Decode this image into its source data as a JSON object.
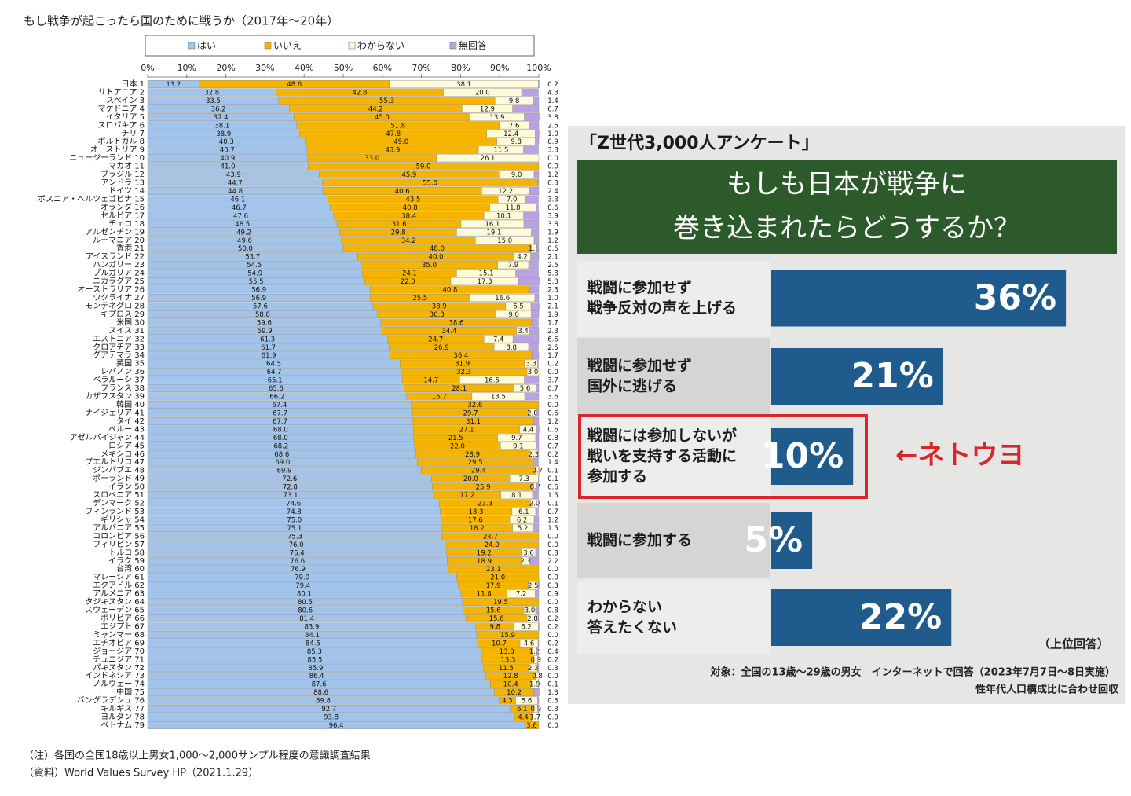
{
  "chart_data": [
    {
      "type": "bar",
      "orientation": "horizontal",
      "stacked": true,
      "title": "もし戦争が起こったら国のために戦うか（2017年〜20年）",
      "categories": [
        "日本 1",
        "リトアニア 2",
        "スペイン 3",
        "マケドニア 4",
        "イタリア 5",
        "スロバキア 6",
        "チリ 7",
        "ポルトガル 8",
        "オーストリア 9",
        "ニュージーランド 10",
        "マカオ 11",
        "ブラジル 12",
        "アンドラ 13",
        "ドイツ 14",
        "ボスニア・ヘルツェゴビナ 15",
        "オランダ 16",
        "セルビア 17",
        "チェコ 18",
        "アルゼンチン 19",
        "ルーマニア 20",
        "香港 21",
        "アイスランド 22",
        "ハンガリー 23",
        "ブルガリア 24",
        "ニカラグア 25",
        "オーストラリア 26",
        "ウクライナ 27",
        "モンテネグロ 28",
        "キプロス 29",
        "米国 30",
        "スイス 31",
        "エストニア 32",
        "クロアチア 33",
        "グアテマラ 34",
        "英国 35",
        "レバノン 36",
        "ベラルーシ 37",
        "フランス 38",
        "カザフスタン 39",
        "韓国 40",
        "ナイジェリア 41",
        "タイ 42",
        "ペルー 43",
        "アゼルバイジャン 44",
        "ロシア 45",
        "メキシコ 46",
        "プエルトリコ 47",
        "ジンバブエ 48",
        "ポーランド 49",
        "イラン 50",
        "スロベニア 51",
        "デンマーク 52",
        "フィンランド 53",
        "ギリシャ 54",
        "アルバニア 55",
        "コロンビア 56",
        "フィリピン 57",
        "トルコ 58",
        "イラク 59",
        "台湾 60",
        "マレーシア 61",
        "エクアドル 62",
        "アルメニア 63",
        "タジキスタン 64",
        "スウェーデン 65",
        "ボリビア 66",
        "エジプト 67",
        "ミャンマー 68",
        "エチオピア 69",
        "ジョージア 70",
        "チュニジア 71",
        "パキスタン 72",
        "インドネシア 73",
        "ノルウェー 74",
        "中国 75",
        "バングラデシュ 76",
        "キルギス 77",
        "ヨルダン 78",
        "ベトナム 79"
      ],
      "series": [
        {
          "name": "はい",
          "color": "#a3c4ea",
          "values": [
            13.2,
            32.8,
            33.5,
            36.2,
            37.4,
            38.1,
            38.9,
            40.3,
            40.7,
            40.9,
            41.0,
            43.9,
            44.7,
            44.8,
            46.1,
            46.7,
            47.6,
            48.5,
            49.2,
            49.6,
            50.0,
            53.7,
            54.5,
            54.9,
            55.5,
            56.9,
            56.9,
            57.6,
            58.8,
            59.6,
            59.9,
            61.3,
            61.7,
            61.9,
            64.5,
            64.7,
            65.1,
            65.6,
            66.2,
            67.4,
            67.7,
            67.7,
            68.0,
            68.0,
            68.2,
            68.6,
            69.0,
            69.9,
            72.6,
            72.8,
            73.1,
            74.6,
            74.8,
            75.0,
            75.1,
            75.3,
            76.0,
            76.4,
            76.6,
            76.9,
            79.0,
            79.4,
            80.1,
            80.5,
            80.6,
            81.4,
            83.9,
            84.1,
            84.5,
            85.3,
            85.5,
            85.9,
            86.4,
            87.6,
            88.6,
            89.8,
            92.7,
            93.8,
            96.4
          ],
          "value_labels": [
            "13.2",
            "32.8",
            "33.5",
            "36.2",
            "37.4",
            "38.1",
            "38.9",
            "40.3",
            "40.7",
            "40.9",
            "41.0",
            "43.9",
            "44.7",
            "44.8",
            "46.1",
            "46.7",
            "47.6",
            "48.5",
            "49.2",
            "49.6",
            "50.0",
            "53.7",
            "54.5",
            "54.9",
            "55.5",
            "56.9",
            "56.9",
            "57.6",
            "58.8",
            "59.6",
            "59.9",
            "61.3",
            "61.7",
            "61.9",
            "64.5",
            "64.7",
            "65.1",
            "65.6",
            "66.2",
            "67.4",
            "67.7",
            "67.7",
            "68.0",
            "68.0",
            "68.2",
            "68.6",
            "69.0",
            "69.9",
            "72.6",
            "72.8",
            "73.1",
            "74.6",
            "74.8",
            "75.0",
            "75.1",
            "75.3",
            "76.0",
            "76.4",
            "76.6",
            "76.9",
            "79.0",
            "79.4",
            "80.1",
            "80.5",
            "80.6",
            "81.4",
            "83.9",
            "84.1",
            "84.5",
            "85.3",
            "85.5",
            "85.9",
            "86.4",
            "87.6",
            "88.6",
            "89.8",
            "92.7",
            "93.8",
            "96.4"
          ]
        },
        {
          "name": "いいえ",
          "color": "#f4b400",
          "values": [
            48.6,
            42.8,
            55.3,
            44.2,
            45.0,
            51.8,
            47.8,
            49.0,
            43.9,
            33.0,
            59.0,
            45.9,
            55.0,
            40.6,
            43.5,
            40.8,
            38.4,
            31.6,
            29.8,
            34.2,
            48.0,
            40.0,
            35.0,
            24.1,
            22.0,
            40.8,
            25.5,
            33.9,
            30.3,
            38.6,
            34.4,
            24.7,
            26.9,
            36.4,
            31.9,
            32.3,
            14.7,
            28.1,
            16.7,
            32.6,
            29.7,
            31.1,
            27.1,
            21.5,
            22.0,
            28.9,
            29.5,
            29.4,
            20.0,
            25.9,
            17.2,
            23.3,
            18.3,
            17.6,
            18.2,
            24.7,
            24.0,
            19.2,
            18.9,
            23.1,
            21.0,
            17.9,
            11.8,
            19.5,
            15.6,
            15.6,
            9.8,
            15.9,
            10.7,
            13.0,
            13.3,
            11.5,
            12.8,
            10.4,
            10.2,
            4.3,
            6.1,
            4.4,
            3.6
          ],
          "value_labels": [
            "48.6",
            "42.8",
            "55.3",
            "44.2",
            "45.0",
            "51.8",
            "47.8",
            "49.0",
            "43.9",
            "33.0",
            "59.0",
            "45.9",
            "55.0",
            "40.6",
            "43.5",
            "40.8",
            "38.4",
            "31.6",
            "29.8",
            "34.2",
            "48.0",
            "40.0",
            "35.0",
            "24.1",
            "22.0",
            "40.8",
            "25.5",
            "33.9",
            "30.3",
            "38.6",
            "34.4",
            "24.7",
            "26.9",
            "36.4",
            "31.9",
            "32.3",
            "14.7",
            "28.1",
            "16.7",
            "32.6",
            "29.7",
            "31.1",
            "27.1",
            "21.5",
            "22.0",
            "28.9",
            "29.5",
            "29.4",
            "20.0",
            "25.9",
            "17.2",
            "23.3",
            "18.3",
            "17.6",
            "18.2",
            "24.7",
            "24.0",
            "19.2",
            "18.9",
            "23.1",
            "21.0",
            "17.9",
            "11.8",
            "19.5",
            "15.6",
            "15.6",
            "9.8",
            "15.9",
            "10.7",
            "13.0",
            "13.3",
            "11.5",
            "12.8",
            "10.4",
            "10.2",
            "4.3",
            "6.1",
            "4.4",
            "3.6"
          ]
        },
        {
          "name": "わからない",
          "color": "#fffbd9",
          "values": [
            38.1,
            20.0,
            9.8,
            12.9,
            13.9,
            7.6,
            12.4,
            9.8,
            11.5,
            26.1,
            0,
            9.0,
            0,
            12.2,
            7.0,
            11.8,
            10.1,
            16.1,
            19.1,
            15.0,
            1.5,
            4.2,
            7.9,
            15.1,
            17.3,
            0,
            16.6,
            6.5,
            9.0,
            0,
            3.4,
            7.4,
            8.8,
            0,
            3.3,
            3.0,
            16.5,
            5.6,
            13.5,
            0,
            2.0,
            0,
            4.4,
            9.7,
            9.1,
            2.3,
            0,
            0.7,
            7.3,
            0.7,
            8.1,
            2.0,
            6.1,
            6.2,
            5.2,
            0,
            0,
            3.6,
            2.3,
            0,
            0,
            2.5,
            7.2,
            0,
            3.0,
            2.8,
            6.2,
            0,
            4.6,
            1.2,
            0.9,
            2.3,
            0.8,
            1.9,
            0,
            5.6,
            0.9,
            1.7,
            0
          ],
          "value_labels": [
            "38.1",
            "20.0",
            "9.8",
            "12.9",
            "13.9",
            "7.6",
            "12.4",
            "9.8",
            "11.5",
            "26.1",
            null,
            "9.0",
            null,
            "12.2",
            "7.0",
            "11.8",
            "10.1",
            "16.1",
            "19.1",
            "15.0",
            "1.5",
            "4.2",
            "7.9",
            "15.1",
            "17.3",
            null,
            "16.6",
            "6.5",
            "9.0",
            null,
            "3.4",
            "7.4",
            "8.8",
            null,
            "3.3",
            "3.0",
            "16.5",
            "5.6",
            "13.5",
            null,
            "2.0",
            null,
            "4.4",
            "9.7",
            "9.1",
            "2.3",
            null,
            "0.7",
            "7.3",
            "0.7",
            "8.1",
            "2.0",
            "6.1",
            "6.2",
            "5.2",
            null,
            null,
            "3.6",
            "2.3",
            null,
            null,
            "2.5",
            "7.2",
            null,
            "3.0",
            "2.8",
            "6.2",
            null,
            "4.6",
            "1.2",
            "0.9",
            "2.3",
            "0.8",
            "1.9",
            null,
            "5.6",
            "0.9",
            "1.7",
            null
          ]
        },
        {
          "name": "無回答",
          "color": "#b9a1e2",
          "values": [
            0.2,
            4.3,
            1.4,
            6.7,
            3.8,
            2.5,
            1.0,
            0.9,
            3.8,
            0.0,
            0.0,
            1.2,
            0.3,
            2.4,
            3.3,
            0.6,
            3.9,
            3.8,
            1.9,
            1.2,
            0.5,
            2.1,
            2.5,
            5.8,
            5.3,
            2.3,
            1.0,
            2.1,
            1.9,
            1.7,
            2.3,
            6.6,
            2.5,
            1.7,
            0.2,
            0.0,
            3.7,
            0.7,
            3.6,
            0.0,
            0.6,
            1.2,
            0.6,
            0.8,
            0.7,
            0.2,
            1.4,
            0.1,
            0.1,
            0.6,
            1.5,
            0.1,
            0.7,
            1.2,
            1.5,
            0.0,
            0.0,
            0.8,
            2.2,
            0.0,
            0.0,
            0.3,
            0.9,
            0.0,
            0.8,
            0.2,
            0.2,
            0.0,
            0.2,
            0.4,
            0.2,
            0.3,
            0.0,
            0.1,
            1.3,
            0.3,
            0.3,
            0.0,
            0.0
          ],
          "value_labels": [
            "0.2",
            "4.3",
            "1.4",
            "6.7",
            "3.8",
            "2.5",
            "1.0",
            "0.9",
            "3.8",
            "0.0",
            "0.0",
            "1.2",
            "0.3",
            "2.4",
            "3.3",
            "0.6",
            "3.9",
            "3.8",
            "1.9",
            "1.2",
            "0.5",
            "2.1",
            "2.5",
            "5.8",
            "5.3",
            "2.3",
            "1.0",
            "2.1",
            "1.9",
            "1.7",
            "2.3",
            "6.6",
            "2.5",
            "1.7",
            "0.2",
            "0.0",
            "3.7",
            "0.7",
            "3.6",
            "0.0",
            "0.6",
            "1.2",
            "0.6",
            "0.8",
            "0.7",
            "0.2",
            "1.4",
            "0.1",
            "0.1",
            "0.6",
            "1.5",
            "0.1",
            "0.7",
            "1.2",
            "1.5",
            "0.0",
            "0.0",
            "0.8",
            "2.2",
            "0.0",
            "0.0",
            "0.3",
            "0.9",
            "0.0",
            "0.8",
            "0.2",
            "0.2",
            "0.0",
            "0.2",
            "0.4",
            "0.2",
            "0.3",
            "0.0",
            "0.1",
            "1.3",
            "0.3",
            "0.3",
            "0.0",
            "0.0"
          ]
        }
      ],
      "xlim": [
        0,
        100
      ],
      "xticks": [
        {
          "value": 0,
          "label": "0%"
        },
        {
          "value": 10,
          "label": "10%"
        },
        {
          "value": 20,
          "label": "20%"
        },
        {
          "value": 30,
          "label": "30%"
        },
        {
          "value": 40,
          "label": "40%"
        },
        {
          "value": 50,
          "label": "50%"
        },
        {
          "value": 60,
          "label": "60%"
        },
        {
          "value": 70,
          "label": "70%"
        },
        {
          "value": 80,
          "label": "80%"
        },
        {
          "value": 90,
          "label": "90%"
        },
        {
          "value": 100,
          "label": "100%"
        }
      ],
      "legend": "top",
      "notes": [
        "（注）各国の全国18歳以上男女1,000〜2,000サンプル程度の意識調査結果",
        "（資料）World Values Survey HP（2021.1.29）"
      ]
    },
    {
      "type": "bar",
      "orientation": "horizontal",
      "stacked": false,
      "title": "「Z世代3,000人アンケート」",
      "subtitle": [
        "もしも日本が戦争に",
        "巻き込まれたらどうするか？"
      ],
      "categories": [
        [
          "戦闘に参加せず",
          "戦争反対の声を上げる"
        ],
        [
          "戦闘に参加せず",
          "国外に逃げる"
        ],
        [
          "戦闘には参加しないが",
          "戦いを支持する活動に",
          "参加する"
        ],
        [
          "戦闘に参加する"
        ],
        [
          "わからない",
          "答えたくない"
        ]
      ],
      "values": [
        36,
        21,
        10,
        5,
        22
      ],
      "value_labels": [
        "36%",
        "21%",
        "10%",
        "5%",
        "22%"
      ],
      "color": "#1f5b8c",
      "annotation": "←ネトウヨ",
      "highlight_color": "#d9252b",
      "notes": [
        "（上位回答）",
        "対象：全国の13歳〜29歳の男女　インターネットで回答（2023年7月7日〜8日実施）",
        "性年代人口構成比に合わせ回収"
      ]
    }
  ]
}
